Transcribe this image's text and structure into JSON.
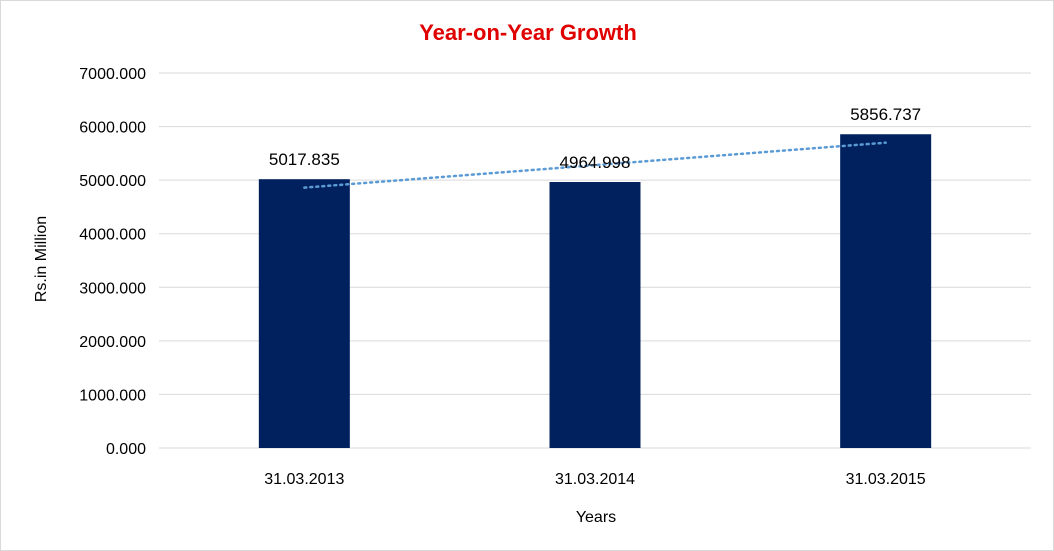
{
  "chart_data": {
    "type": "bar",
    "title": "Year-on-Year Growth",
    "xlabel": "Years",
    "ylabel": "Rs.in Million",
    "categories": [
      "31.03.2013",
      "31.03.2014",
      "31.03.2015"
    ],
    "values": [
      5017.835,
      4964.998,
      5856.737
    ],
    "value_labels": [
      "5017.835",
      "4964.998",
      "5856.737"
    ],
    "ylim": [
      0,
      7000
    ],
    "yticks": [
      0,
      1000,
      2000,
      3000,
      4000,
      5000,
      6000,
      7000
    ],
    "ytick_labels": [
      "0.000",
      "1000.000",
      "2000.000",
      "3000.000",
      "4000.000",
      "5000.000",
      "6000.000",
      "7000.000"
    ],
    "grid": true,
    "trendline": {
      "type": "linear",
      "style": "dotted"
    },
    "colors": {
      "bar": "#00215e",
      "title": "#e00000",
      "grid": "#d9d9d9",
      "trendline": "#5b9bd5"
    }
  }
}
